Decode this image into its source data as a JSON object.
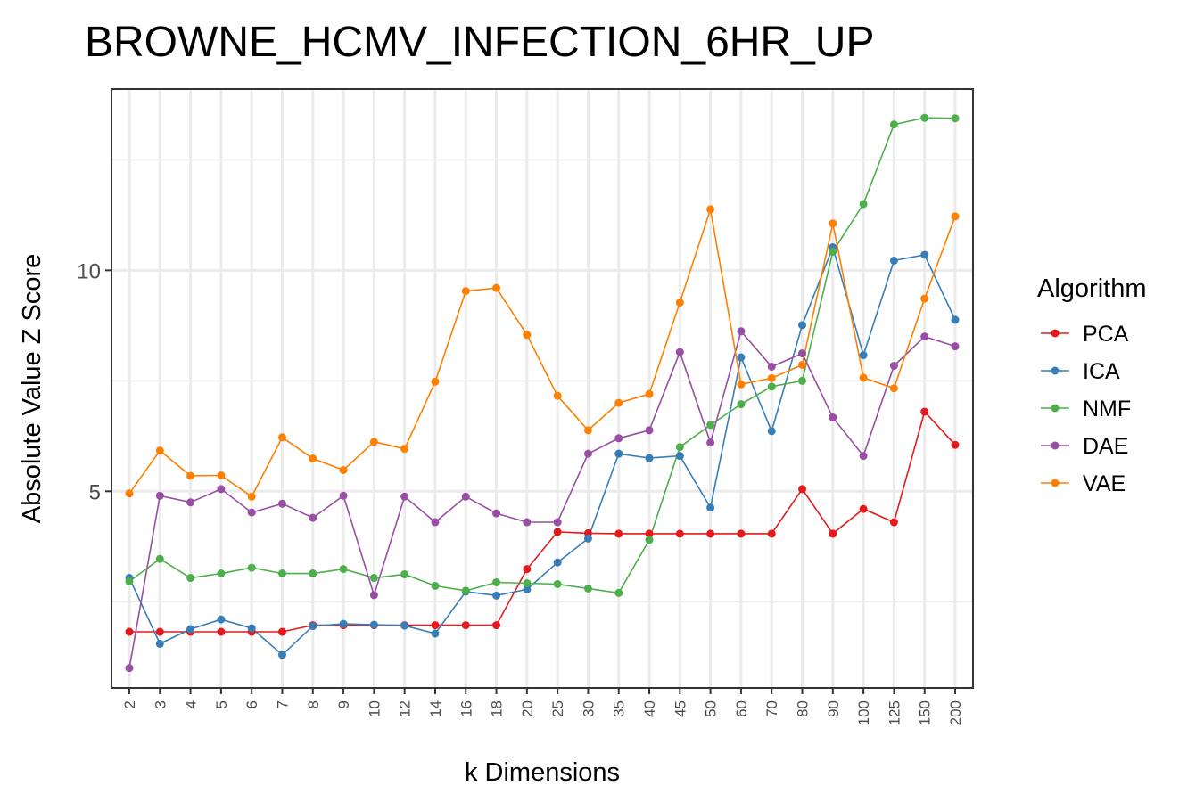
{
  "chart_data": {
    "type": "line",
    "title": "BROWNE_HCMV_INFECTION_6HR_UP",
    "xlabel": "k Dimensions",
    "ylabel": "Absolute Value Z Score",
    "categories": [
      "2",
      "3",
      "4",
      "5",
      "6",
      "7",
      "8",
      "9",
      "10",
      "12",
      "14",
      "16",
      "18",
      "20",
      "25",
      "30",
      "35",
      "40",
      "45",
      "50",
      "60",
      "70",
      "80",
      "90",
      "100",
      "125",
      "150",
      "200"
    ],
    "ylim": [
      0.55,
      14.1
    ],
    "yticks": [
      5,
      10
    ],
    "legend": {
      "title": "Algorithm",
      "position": "right"
    },
    "grid": true,
    "series": [
      {
        "name": "PCA",
        "color": "#e41a1c",
        "values": [
          1.82,
          1.82,
          1.82,
          1.82,
          1.82,
          1.82,
          1.97,
          1.97,
          1.97,
          1.97,
          1.97,
          1.97,
          1.97,
          3.24,
          4.08,
          4.05,
          4.04,
          4.04,
          4.04,
          4.04,
          4.04,
          4.04,
          5.05,
          4.04,
          4.6,
          4.3,
          6.8,
          6.05
        ]
      },
      {
        "name": "ICA",
        "color": "#377eb8",
        "values": [
          3.04,
          1.55,
          1.88,
          2.1,
          1.9,
          1.3,
          1.95,
          2.0,
          1.98,
          1.96,
          1.78,
          2.73,
          2.64,
          2.78,
          3.39,
          3.93,
          5.85,
          5.75,
          5.8,
          4.63,
          8.03,
          6.36,
          8.76,
          10.52,
          8.08,
          10.22,
          10.35,
          8.88
        ]
      },
      {
        "name": "NMF",
        "color": "#4daf4a",
        "values": [
          2.96,
          3.47,
          3.04,
          3.14,
          3.27,
          3.14,
          3.14,
          3.24,
          3.04,
          3.12,
          2.86,
          2.75,
          2.94,
          2.92,
          2.9,
          2.8,
          2.7,
          3.9,
          6.0,
          6.5,
          6.97,
          7.37,
          7.5,
          10.42,
          11.5,
          13.3,
          13.45,
          13.44
        ]
      },
      {
        "name": "DAE",
        "color": "#984ea3",
        "values": [
          1.0,
          4.9,
          4.75,
          5.05,
          4.52,
          4.72,
          4.4,
          4.9,
          2.65,
          4.88,
          4.3,
          4.88,
          4.5,
          4.3,
          4.3,
          5.85,
          6.2,
          6.38,
          8.15,
          6.1,
          8.62,
          7.82,
          8.12,
          6.67,
          5.8,
          7.84,
          8.5,
          8.28
        ]
      },
      {
        "name": "VAE",
        "color": "#ff7f00",
        "values": [
          4.95,
          5.92,
          5.35,
          5.36,
          4.88,
          6.22,
          5.74,
          5.48,
          6.12,
          5.96,
          7.48,
          9.53,
          9.6,
          8.54,
          7.16,
          6.38,
          7.0,
          7.2,
          9.27,
          11.38,
          7.42,
          7.56,
          7.86,
          11.06,
          7.57,
          7.33,
          9.36,
          11.22
        ]
      }
    ]
  }
}
